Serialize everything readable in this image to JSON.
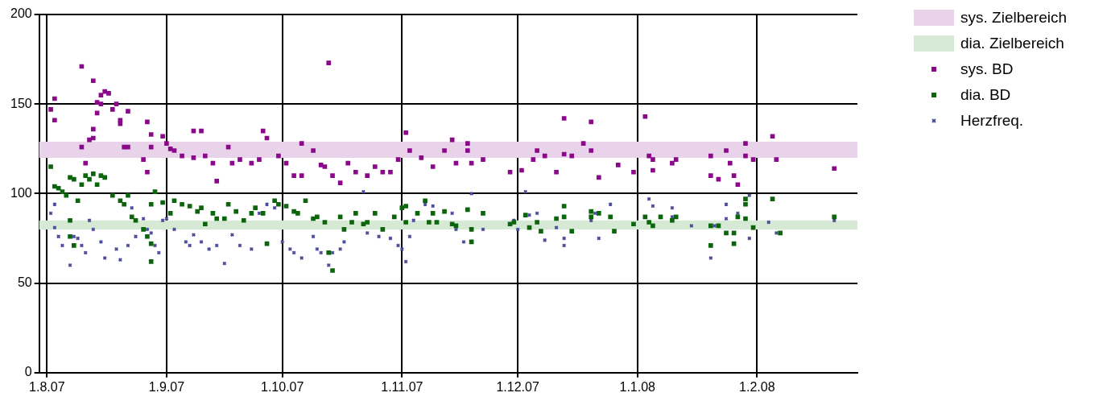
{
  "chart_data": {
    "type": "scatter",
    "xlim": [
      "2007-07-30",
      "2008-02-27"
    ],
    "xticks": [
      {
        "value": "2007-08-01",
        "label": "1.8.07"
      },
      {
        "value": "2007-09-01",
        "label": "1.9.07"
      },
      {
        "value": "2007-10-01",
        "label": "1.10.07"
      },
      {
        "value": "2007-11-01",
        "label": "1.11.07"
      },
      {
        "value": "2007-12-01",
        "label": "1.12.07"
      },
      {
        "value": "2008-01-01",
        "label": "1.1.08"
      },
      {
        "value": "2008-02-01",
        "label": "1.2.08"
      }
    ],
    "ylim": [
      0,
      200
    ],
    "yticks": [
      0,
      50,
      100,
      150,
      200
    ],
    "grid": true,
    "legend": "top right",
    "bands": [
      {
        "axis": "y",
        "from": 120,
        "to": 129,
        "label": "sys. Zielbereich",
        "color": "#e8d3ea"
      },
      {
        "axis": "y",
        "from": 80,
        "to": 85,
        "label": "dia. Zielbereich",
        "color": "#d6e9d5"
      }
    ],
    "series": [
      {
        "name": "sys. BD",
        "color": "#8b088b",
        "marker": "square",
        "x": [
          "2007-08-03",
          "2007-08-02",
          "2007-08-03",
          "2007-08-10",
          "2007-08-13",
          "2007-08-15",
          "2007-08-16",
          "2007-08-17",
          "2007-08-15",
          "2007-08-18",
          "2007-08-19",
          "2007-08-22",
          "2007-08-14",
          "2007-08-14",
          "2007-08-13",
          "2007-08-12",
          "2007-08-10",
          "2007-08-11",
          "2007-08-13",
          "2007-08-20",
          "2007-08-21",
          "2007-08-22",
          "2007-08-20",
          "2007-08-27",
          "2007-08-28",
          "2007-08-28",
          "2007-08-26",
          "2007-08-27",
          "2007-08-31",
          "2007-09-01",
          "2007-09-02",
          "2007-09-03",
          "2007-09-05",
          "2007-09-08",
          "2007-09-08",
          "2007-09-10",
          "2007-09-11",
          "2007-09-13",
          "2007-09-14",
          "2007-09-17",
          "2007-09-18",
          "2007-09-20",
          "2007-09-23",
          "2007-09-25",
          "2007-09-26",
          "2007-09-27",
          "2007-09-30",
          "2007-10-02",
          "2007-10-04",
          "2007-10-06",
          "2007-10-06",
          "2007-10-09",
          "2007-10-11",
          "2007-10-13",
          "2007-10-12",
          "2007-10-14",
          "2007-10-16",
          "2007-10-18",
          "2007-10-20",
          "2007-10-23",
          "2007-10-25",
          "2007-10-27",
          "2007-10-29",
          "2007-10-31",
          "2007-11-02",
          "2007-11-03",
          "2007-11-06",
          "2007-11-09",
          "2007-11-12",
          "2007-11-14",
          "2007-11-15",
          "2007-11-18",
          "2007-11-19",
          "2007-11-18",
          "2007-11-22",
          "2007-11-29",
          "2007-12-02",
          "2007-12-05",
          "2007-12-06",
          "2007-12-08",
          "2007-12-11",
          "2007-12-13",
          "2007-12-13",
          "2007-12-15",
          "2007-12-18",
          "2007-12-20",
          "2007-12-20",
          "2007-12-22",
          "2007-12-27",
          "2007-12-31",
          "2008-01-03",
          "2008-01-04",
          "2008-01-05",
          "2008-01-05",
          "2008-01-10",
          "2008-01-11",
          "2008-01-20",
          "2008-01-20",
          "2008-01-22",
          "2008-01-24",
          "2008-01-25",
          "2008-01-26",
          "2008-01-27",
          "2008-01-29",
          "2008-01-29",
          "2008-01-31",
          "2008-02-05",
          "2008-02-06",
          "2008-02-21"
        ],
        "values": [
          153,
          147,
          141,
          171,
          163,
          155,
          157,
          156,
          150,
          147,
          150,
          146,
          151,
          145,
          136,
          130,
          126,
          117,
          131,
          139,
          126,
          126,
          141,
          140,
          133,
          126,
          119,
          112,
          132,
          128,
          125,
          124,
          121,
          120,
          135,
          135,
          121,
          117,
          107,
          126,
          117,
          119,
          117,
          119,
          135,
          131,
          121,
          117,
          110,
          110,
          128,
          124,
          116,
          173,
          115,
          110,
          106,
          117,
          112,
          110,
          115,
          112,
          112,
          119,
          134,
          124,
          120,
          115,
          124,
          130,
          117,
          128,
          117,
          124,
          119,
          112,
          113,
          119,
          124,
          121,
          112,
          142,
          122,
          121,
          128,
          124,
          140,
          109,
          116,
          112,
          143,
          121,
          119,
          113,
          117,
          119,
          121,
          110,
          108,
          124,
          117,
          110,
          105,
          128,
          121,
          119,
          132,
          119,
          114
        ]
      },
      {
        "name": "dia. BD",
        "color": "#0b650b",
        "marker": "square",
        "x": [
          "2007-08-02",
          "2007-08-03",
          "2007-08-04",
          "2007-08-05",
          "2007-08-06",
          "2007-08-07",
          "2007-08-08",
          "2007-08-09",
          "2007-08-10",
          "2007-08-11",
          "2007-08-12",
          "2007-08-13",
          "2007-08-14",
          "2007-08-15",
          "2007-08-16",
          "2007-08-18",
          "2007-08-07",
          "2007-08-07",
          "2007-08-08",
          "2007-08-20",
          "2007-08-21",
          "2007-08-22",
          "2007-08-23",
          "2007-08-24",
          "2007-08-26",
          "2007-08-27",
          "2007-08-28",
          "2007-08-28",
          "2007-08-28",
          "2007-08-29",
          "2007-08-31",
          "2007-09-02",
          "2007-09-03",
          "2007-09-05",
          "2007-09-07",
          "2007-09-09",
          "2007-09-10",
          "2007-09-11",
          "2007-09-13",
          "2007-09-14",
          "2007-09-16",
          "2007-09-17",
          "2007-09-19",
          "2007-09-21",
          "2007-09-23",
          "2007-09-24",
          "2007-09-26",
          "2007-09-27",
          "2007-09-29",
          "2007-09-30",
          "2007-10-02",
          "2007-10-04",
          "2007-10-05",
          "2007-10-07",
          "2007-10-09",
          "2007-10-10",
          "2007-10-12",
          "2007-10-13",
          "2007-10-14",
          "2007-10-16",
          "2007-10-17",
          "2007-10-19",
          "2007-10-20",
          "2007-10-22",
          "2007-10-23",
          "2007-10-25",
          "2007-10-27",
          "2007-10-30",
          "2007-11-01",
          "2007-11-02",
          "2007-11-02",
          "2007-11-05",
          "2007-11-07",
          "2007-11-08",
          "2007-11-09",
          "2007-11-10",
          "2007-11-12",
          "2007-11-14",
          "2007-11-15",
          "2007-11-18",
          "2007-11-19",
          "2007-11-19",
          "2007-11-22",
          "2007-11-29",
          "2007-11-30",
          "2007-12-03",
          "2007-12-04",
          "2007-12-06",
          "2007-12-07",
          "2007-12-11",
          "2007-12-13",
          "2007-12-13",
          "2007-12-15",
          "2007-12-20",
          "2007-12-20",
          "2007-12-22",
          "2007-12-25",
          "2007-12-26",
          "2007-12-31",
          "2008-01-03",
          "2008-01-04",
          "2008-01-05",
          "2008-01-07",
          "2008-01-10",
          "2008-01-11",
          "2008-01-20",
          "2008-01-20",
          "2008-01-22",
          "2008-01-24",
          "2008-01-26",
          "2008-01-26",
          "2008-01-27",
          "2008-01-29",
          "2008-01-29",
          "2008-01-29",
          "2008-01-31",
          "2008-02-05",
          "2008-02-07",
          "2008-02-21"
        ],
        "values": [
          115,
          104,
          103,
          101,
          99,
          109,
          108,
          96,
          105,
          110,
          108,
          111,
          105,
          110,
          109,
          99,
          85,
          76,
          71,
          96,
          94,
          99,
          87,
          85,
          80,
          76,
          62,
          72,
          94,
          101,
          95,
          89,
          96,
          94,
          93,
          90,
          92,
          83,
          89,
          86,
          86,
          94,
          90,
          85,
          89,
          92,
          89,
          72,
          96,
          94,
          93,
          90,
          89,
          96,
          86,
          87,
          84,
          67,
          57,
          87,
          80,
          84,
          89,
          83,
          84,
          89,
          80,
          87,
          92,
          93,
          84,
          89,
          96,
          84,
          89,
          84,
          90,
          83,
          82,
          91,
          80,
          73,
          89,
          83,
          84,
          88,
          81,
          84,
          79,
          86,
          93,
          87,
          79,
          90,
          87,
          89,
          87,
          79,
          83,
          87,
          84,
          82,
          87,
          85,
          87,
          82,
          71,
          82,
          78,
          78,
          72,
          87,
          97,
          94,
          86,
          81,
          97,
          78,
          87
        ]
      },
      {
        "name": "Herzfreq.",
        "color": "#4b4b9b",
        "marker": "cross",
        "x": [
          "2007-08-02",
          "2007-08-03",
          "2007-08-03",
          "2007-08-04",
          "2007-08-05",
          "2007-08-07",
          "2007-08-08",
          "2007-08-09",
          "2007-08-10",
          "2007-08-11",
          "2007-08-12",
          "2007-08-13",
          "2007-08-15",
          "2007-08-16",
          "2007-08-19",
          "2007-08-20",
          "2007-08-22",
          "2007-08-23",
          "2007-08-24",
          "2007-08-26",
          "2007-08-27",
          "2007-08-28",
          "2007-08-29",
          "2007-08-30",
          "2007-08-31",
          "2007-09-01",
          "2007-09-03",
          "2007-09-06",
          "2007-09-07",
          "2007-09-08",
          "2007-09-10",
          "2007-09-12",
          "2007-09-14",
          "2007-09-16",
          "2007-09-18",
          "2007-09-20",
          "2007-09-23",
          "2007-09-25",
          "2007-09-27",
          "2007-09-29",
          "2007-10-01",
          "2007-10-03",
          "2007-10-04",
          "2007-10-06",
          "2007-10-09",
          "2007-10-10",
          "2007-10-11",
          "2007-10-13",
          "2007-10-14",
          "2007-10-16",
          "2007-10-17",
          "2007-10-22",
          "2007-10-23",
          "2007-10-26",
          "2007-10-29",
          "2007-10-31",
          "2007-11-01",
          "2007-11-02",
          "2007-11-03",
          "2007-11-04",
          "2007-11-07",
          "2007-11-09",
          "2007-11-14",
          "2007-11-15",
          "2007-11-17",
          "2007-11-19",
          "2007-11-22",
          "2007-11-30",
          "2007-12-01",
          "2007-12-03",
          "2007-12-04",
          "2007-12-06",
          "2007-12-08",
          "2007-12-11",
          "2007-12-13",
          "2007-12-13",
          "2007-12-20",
          "2007-12-21",
          "2007-12-22",
          "2007-12-25",
          "2008-01-04",
          "2008-01-05",
          "2008-01-10",
          "2008-01-10",
          "2008-01-15",
          "2008-01-20",
          "2008-01-21",
          "2008-01-24",
          "2008-01-24",
          "2008-01-27",
          "2008-01-30",
          "2008-01-30",
          "2008-02-04",
          "2008-02-06",
          "2008-02-21"
        ],
        "values": [
          89,
          94,
          81,
          76,
          71,
          60,
          76,
          75,
          71,
          67,
          85,
          80,
          73,
          64,
          69,
          63,
          71,
          92,
          76,
          86,
          80,
          78,
          71,
          67,
          85,
          86,
          80,
          73,
          71,
          77,
          73,
          69,
          71,
          61,
          77,
          71,
          69,
          89,
          94,
          92,
          73,
          69,
          67,
          64,
          76,
          69,
          67,
          60,
          67,
          69,
          73,
          101,
          78,
          76,
          75,
          71,
          69,
          62,
          76,
          85,
          94,
          93,
          89,
          80,
          73,
          100,
          80,
          85,
          80,
          101,
          88,
          89,
          74,
          81,
          71,
          75,
          85,
          89,
          75,
          94,
          97,
          93,
          92,
          87,
          82,
          64,
          82,
          94,
          86,
          89,
          99,
          75,
          84,
          78,
          85
        ]
      }
    ]
  }
}
